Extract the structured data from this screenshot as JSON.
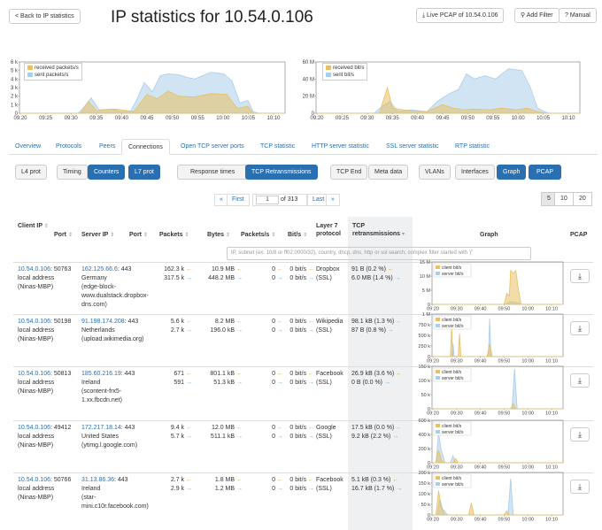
{
  "header": {
    "back_label": "< Back to IP statistics",
    "title": "IP statistics for 10.54.0.106",
    "live_pcap_label": "Live PCAP of 10.54.0.106",
    "add_filter_label": "Add Filter",
    "manual_label": "Manual"
  },
  "overview": {
    "packets": {
      "legend": [
        "received packets/s",
        "sent packets/s"
      ],
      "y_ticks": [
        "0",
        "1 k",
        "2 k",
        "3 k",
        "4 k",
        "5 k",
        "6 k"
      ],
      "x_ticks": [
        "09:20",
        "09:25",
        "09:30",
        "09:35",
        "09:40",
        "09:45",
        "09:50",
        "09:55",
        "10:00",
        "10:05",
        "10:10"
      ]
    },
    "bits": {
      "legend": [
        "received bit/s",
        "sent bit/s"
      ],
      "y_ticks": [
        "0",
        "20 M",
        "40 M",
        "60 M"
      ],
      "x_ticks": [
        "09:20",
        "09:25",
        "09:30",
        "09:35",
        "09:40",
        "09:45",
        "09:50",
        "09:55",
        "10:00",
        "10:05",
        "10:10"
      ]
    }
  },
  "tabs": [
    "Overview",
    "Protocols",
    "Peers",
    "Connections",
    "Open TCP server ports",
    "TCP statistic",
    "HTTP server statistic",
    "SSL server statistic",
    "RTP statistic"
  ],
  "active_tab": "Connections",
  "toggles": [
    "L4 prot",
    "Timing",
    "Counters",
    "L7 prot",
    "Response times",
    "TCP Retransmissions",
    "TCP End",
    "Meta data",
    "VLANs",
    "Interfaces",
    "Graph",
    "PCAP"
  ],
  "pagination": {
    "prev": "«",
    "first": "First",
    "page": "1",
    "of": "of 313",
    "last": "Last",
    "next": "»",
    "sizes": [
      "5",
      "10",
      "20"
    ]
  },
  "columns": {
    "client_ip": "Client IP",
    "port": "Port",
    "server_ip": "Server IP",
    "server_port": "Port",
    "packets": "Packets",
    "bytes": "Bytes",
    "packets_s": "Packets/s",
    "bits_s": "Bit/s",
    "l7_line1": "Layer 7",
    "l7_line2": "protocol",
    "tcp_line1": "TCP",
    "tcp_line2": "retransmissions",
    "graph": "Graph",
    "pcap": "PCAP"
  },
  "filter_placeholder": "IP, subnet (ex. 10/8 or ff02:0000/32), country, dhcp, dns, http or ssl search, complex filter started with '('",
  "rows": [
    {
      "client": "10.54.0.106",
      "client_port": ": 50763",
      "client_l2": "local address",
      "client_l3": "(Ninas-MBP)",
      "server": "162.125.66.6",
      "server_port": ": 443",
      "server_l2": "Germany",
      "server_l3": "(edge-block-",
      "server_l4": "www.dualstack.dropbox-",
      "server_l5": "dns.com)",
      "pk_in": "162.3 k",
      "pk_out": "317.5 k",
      "by_in": "10.9 MB",
      "by_out": "448.2 MB",
      "pps_in": "0",
      "pps_out": "0",
      "bps_in": "0 bit/s",
      "bps_out": "0 bit/s",
      "l7_1": "Dropbox",
      "l7_2": "(SSL)",
      "tcp_in": "91 B (0.2 %)",
      "tcp_out": "6.0 MB (1.4 %)",
      "y_ticks": [
        "0",
        "5 M",
        "10 M",
        "15 M"
      ],
      "legend": [
        "client bit/s",
        "server bit/s"
      ],
      "x_ticks": [
        "09:20",
        "09:30",
        "09:40",
        "09:50",
        "10:00",
        "10:10"
      ]
    },
    {
      "client": "10.54.0.106",
      "client_port": ": 50198",
      "client_l2": "local address",
      "client_l3": "(Ninas-MBP)",
      "server": "91.198.174.208",
      "server_port": ": 443",
      "server_l2": "Netherlands",
      "server_l3": "(upload.wikimedia.org)",
      "server_l4": "",
      "server_l5": "",
      "pk_in": "5.6 k",
      "pk_out": "2.7 k",
      "by_in": "8.2 MB",
      "by_out": "196.0 kB",
      "pps_in": "0",
      "pps_out": "0",
      "bps_in": "0 bit/s",
      "bps_out": "0 bit/s",
      "l7_1": "Wikipedia",
      "l7_2": "(SSL)",
      "tcp_in": "98.1 kB (1.3 %)",
      "tcp_out": "87 B (0.8 %)",
      "y_ticks": [
        "0",
        "250 k",
        "500 k",
        "750 k",
        "1 M"
      ],
      "legend": [
        "client bit/s",
        "server bit/s"
      ],
      "x_ticks": [
        "09:20",
        "09:30",
        "09:40",
        "09:50",
        "10:00",
        "10:10"
      ]
    },
    {
      "client": "10.54.0.106",
      "client_port": ": 50813",
      "client_l2": "local address",
      "client_l3": "(Ninas-MBP)",
      "server": "185.60.216.19",
      "server_port": ": 443",
      "server_l2": "Ireland",
      "server_l3": "(scontent-frx5-",
      "server_l4": "1.xx.fbcdn.net)",
      "server_l5": "",
      "pk_in": "671",
      "pk_out": "591",
      "by_in": "801.1 kB",
      "by_out": "51.3 kB",
      "pps_in": "0",
      "pps_out": "0",
      "bps_in": "0 bit/s",
      "bps_out": "0 bit/s",
      "l7_1": "Facebook",
      "l7_2": "(SSL)",
      "tcp_in": "26.9 kB (3.6 %)",
      "tcp_out": "0 B (0.0 %)",
      "y_ticks": [
        "0",
        "50 k",
        "100 k",
        "150 k"
      ],
      "legend": [
        "client bit/s",
        "server bit/s"
      ],
      "x_ticks": [
        "09:20",
        "09:30",
        "09:40",
        "09:50",
        "10:00",
        "10:10"
      ]
    },
    {
      "client": "10.54.0.106",
      "client_port": ": 49412",
      "client_l2": "local address",
      "client_l3": "(Ninas-MBP)",
      "server": "172.217.18.14",
      "server_port": ": 443",
      "server_l2": "United States",
      "server_l3": "(ytimg.l.google.com)",
      "server_l4": "",
      "server_l5": "",
      "pk_in": "9.4 k",
      "pk_out": "5.7 k",
      "by_in": "12.0 MB",
      "by_out": "511.1 kB",
      "pps_in": "0",
      "pps_out": "0",
      "bps_in": "0 bit/s",
      "bps_out": "0 bit/s",
      "l7_1": "Google",
      "l7_2": "(SSL)",
      "tcp_in": "17.5 kB (0.0 %)",
      "tcp_out": "9.2 kB (2.2 %)",
      "y_ticks": [
        "0",
        "200 k",
        "400 k",
        "600 k"
      ],
      "legend": [
        "client bit/s",
        "server bit/s"
      ],
      "x_ticks": [
        "09:20",
        "09:30",
        "09:40",
        "09:50",
        "10:00",
        "10:10"
      ]
    },
    {
      "client": "10.54.0.106",
      "client_port": ": 50766",
      "client_l2": "local address",
      "client_l3": "(Ninas-MBP)",
      "server": "31.13.86.36",
      "server_port": ": 443",
      "server_l2": "Ireland",
      "server_l3": "(star-",
      "server_l4": "mini.c10r.facebook.com)",
      "server_l5": "",
      "pk_in": "2.7 k",
      "pk_out": "2.9 k",
      "by_in": "1.8 MB",
      "by_out": "1.2 MB",
      "pps_in": "0",
      "pps_out": "0",
      "bps_in": "0 bit/s",
      "bps_out": "0 bit/s",
      "l7_1": "Facebook",
      "l7_2": "(SSL)",
      "tcp_in": "5.1 kB (0.3 %)",
      "tcp_out": "16.7 kB (1.7 %)",
      "y_ticks": [
        "0",
        "50 k",
        "100 k",
        "150 k",
        "200 k"
      ],
      "legend": [
        "client bit/s",
        "server bit/s"
      ],
      "x_ticks": [
        "09:20",
        "09:30",
        "09:40",
        "09:50",
        "10:00",
        "10:10"
      ]
    }
  ],
  "colors": {
    "received": "#e8c060",
    "sent": "#a9cdeb",
    "link": "#2a6fb0",
    "active": "#2a6fb0"
  },
  "icons": {
    "back": "chevron-left-icon",
    "download": "download-icon",
    "sort": "sort-icon"
  }
}
